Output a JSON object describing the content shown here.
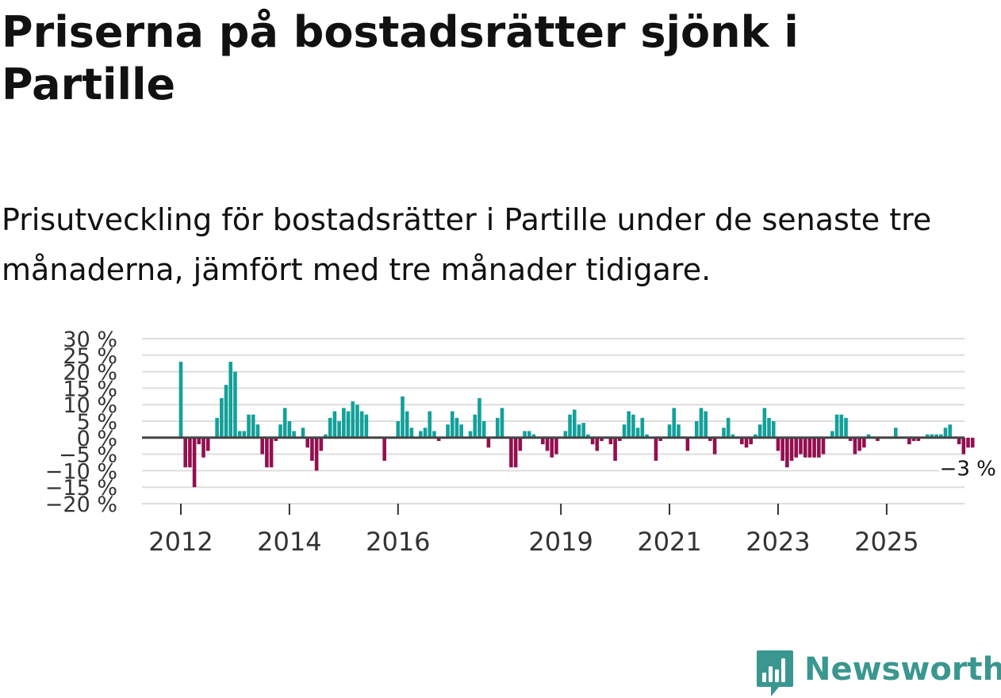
{
  "title": "Priserna på bostadsrätter sjönk i Partille",
  "subtitle": "Prisutveckling för bostadsrätter i Partille under de senaste tre månaderna, jämfört med tre månader tidigare.",
  "brand": {
    "name": "Newsworthy",
    "icon": "newsworthy-logo-icon",
    "color": "#3a9790"
  },
  "chart_data": {
    "type": "bar",
    "unit": "%",
    "ylim": [
      -20,
      30
    ],
    "yticks": [
      30,
      25,
      20,
      15,
      10,
      5,
      0,
      -5,
      -10,
      -15,
      -20
    ],
    "ytick_labels": [
      "30 %",
      "25 %",
      "20 %",
      "15 %",
      "10 %",
      "5 %",
      "0 %",
      "−5 %",
      "−10 %",
      "−15 %",
      "−20 %"
    ],
    "x_start": {
      "year": 2012,
      "month": 1
    },
    "xticks": [
      {
        "year": 2012,
        "label": "2012"
      },
      {
        "year": 2014,
        "label": "2014"
      },
      {
        "year": 2016,
        "label": "2016"
      },
      {
        "year": 2019,
        "label": "2019"
      },
      {
        "year": 2021,
        "label": "2021"
      },
      {
        "year": 2023,
        "label": "2023"
      },
      {
        "year": 2025,
        "label": "2025"
      }
    ],
    "positive_color": "#13a09a",
    "negative_color": "#930f4f",
    "grid": true,
    "last_value_label": "−3 %",
    "values": [
      23,
      -9,
      -9,
      -15,
      -2,
      -6,
      -4,
      0,
      6,
      12,
      16,
      23,
      20,
      2,
      2,
      7,
      7,
      4,
      -5,
      -9,
      -9,
      -1,
      4,
      9,
      5,
      2,
      0,
      3,
      -3,
      -7,
      -10,
      -4,
      1,
      6,
      8,
      5,
      9,
      8,
      11,
      10,
      8,
      7,
      0,
      0,
      0,
      -7,
      0,
      0,
      5,
      12.5,
      8,
      3,
      0,
      2,
      3,
      8,
      2,
      -1,
      0,
      4,
      8,
      6,
      4,
      0,
      2,
      7,
      12,
      5,
      -3,
      0,
      6,
      9,
      0,
      -9,
      -9,
      -4,
      2,
      2,
      1,
      0,
      -2,
      -4,
      -6,
      -5,
      0,
      2,
      7,
      8.5,
      4,
      4.5,
      1,
      -2,
      -4,
      -1,
      0,
      -2,
      -7,
      -1,
      4,
      8,
      7,
      3,
      6,
      1,
      0,
      -7,
      -1,
      0,
      4,
      9,
      4,
      0,
      -4,
      0,
      5,
      9,
      8,
      -1,
      -5,
      0,
      3,
      6,
      1,
      0,
      -2,
      -3,
      -2,
      1,
      4,
      9,
      6,
      5,
      -4,
      -7,
      -9,
      -7,
      -6,
      -5,
      -6,
      -6,
      -6,
      -6,
      -5,
      0,
      2,
      7,
      7,
      6,
      -1,
      -5,
      -4,
      -3,
      1,
      0,
      -1,
      0,
      0,
      0,
      3,
      0,
      0,
      -2,
      -1,
      -1,
      0,
      1,
      1,
      1,
      1,
      3,
      4,
      0,
      -2,
      -5,
      -3,
      -3
    ]
  }
}
